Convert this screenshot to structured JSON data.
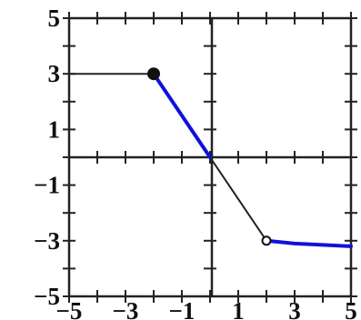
{
  "chart_data": {
    "type": "line",
    "title": "",
    "xlabel": "",
    "ylabel": "",
    "xlim": [
      -5,
      5
    ],
    "ylim": [
      -5,
      5
    ],
    "grid": false,
    "x_ticks": [
      -5,
      -4,
      -3,
      -2,
      -1,
      0,
      1,
      2,
      3,
      4,
      5
    ],
    "y_ticks": [
      -5,
      -4,
      -3,
      -2,
      -1,
      0,
      1,
      2,
      3,
      4,
      5
    ],
    "x_tick_labels": [
      {
        "value": -5,
        "text": "−5"
      },
      {
        "value": -3,
        "text": "−3"
      },
      {
        "value": -1,
        "text": "−1"
      },
      {
        "value": 1,
        "text": "1"
      },
      {
        "value": 3,
        "text": "3"
      },
      {
        "value": 5,
        "text": "5"
      }
    ],
    "y_tick_labels": [
      {
        "value": 5,
        "text": "5"
      },
      {
        "value": 3,
        "text": "3"
      },
      {
        "value": 1,
        "text": "1"
      },
      {
        "value": -1,
        "text": "−1"
      },
      {
        "value": -3,
        "text": "−3"
      },
      {
        "value": -5,
        "text": "−5"
      }
    ],
    "series": [
      {
        "color": "#222222",
        "width": 2,
        "points": [
          [
            -5,
            3
          ],
          [
            -2,
            3
          ],
          [
            0,
            0
          ],
          [
            2,
            -3
          ]
        ]
      },
      {
        "color": "#1010dd",
        "width": 4,
        "points": [
          [
            -2,
            3
          ],
          [
            0,
            0
          ]
        ]
      },
      {
        "color": "#1010dd",
        "width": 4,
        "points": [
          [
            2,
            -3
          ],
          [
            3,
            -3.1
          ],
          [
            4,
            -3.15
          ],
          [
            5,
            -3.2
          ]
        ]
      }
    ],
    "markers": [
      {
        "x": -2,
        "y": 3,
        "style": "filled",
        "color": "#111111"
      },
      {
        "x": 2,
        "y": -3,
        "style": "open",
        "color": "#111111"
      }
    ]
  }
}
